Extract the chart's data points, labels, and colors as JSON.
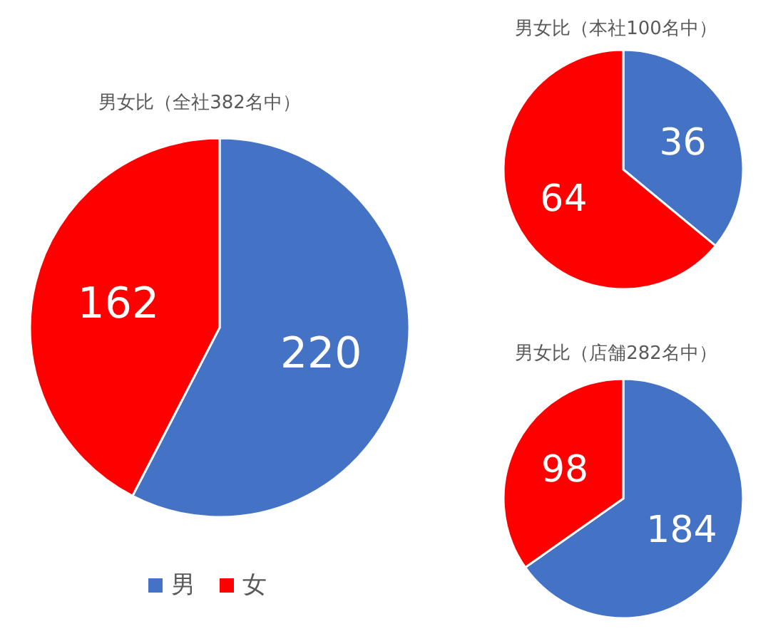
{
  "chart_data": [
    {
      "type": "pie",
      "title": "男女比（全社382名中）",
      "categories": [
        "男",
        "女"
      ],
      "values": [
        220,
        162
      ],
      "colors": [
        "#4472c4",
        "#ff0000"
      ],
      "data_labels": true,
      "legend": "bottom"
    },
    {
      "type": "pie",
      "title": "男女比（本社100名中）",
      "categories": [
        null,
        null
      ],
      "values": [
        36,
        64
      ],
      "colors": [
        "#4472c4",
        "#ff0000"
      ],
      "data_labels": true
    },
    {
      "type": "pie",
      "title": "男女比（店舗282名中）",
      "categories": [
        null,
        null
      ],
      "values": [
        184,
        98
      ],
      "colors": [
        "#4472c4",
        "#ff0000"
      ],
      "data_labels": true
    }
  ]
}
